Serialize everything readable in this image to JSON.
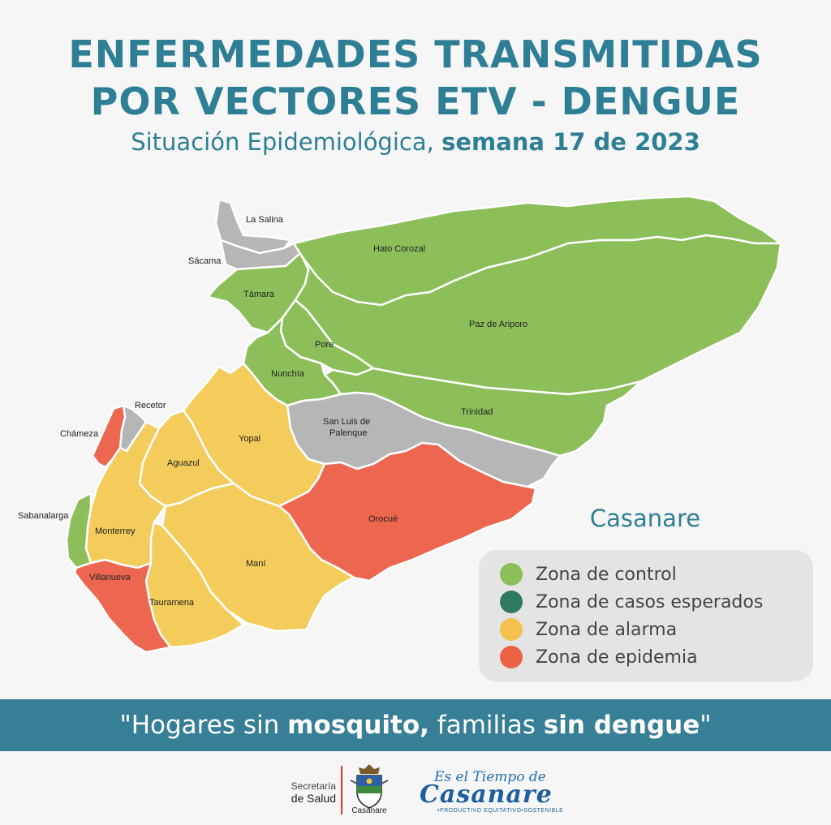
{
  "header": {
    "title_line1": "ENFERMEDADES TRANSMITIDAS",
    "title_line2": "POR VECTORES ETV - DENGUE",
    "subtitle_light": "Situación Epidemiológica,",
    "subtitle_bold": "semana 17 de 2023"
  },
  "map": {
    "region_name": "Casanare",
    "municipalities": [
      {
        "name": "La Salina",
        "zone": "gray"
      },
      {
        "name": "Sácama",
        "zone": "gray"
      },
      {
        "name": "Hato Corozal",
        "zone": "control"
      },
      {
        "name": "Támara",
        "zone": "control"
      },
      {
        "name": "Paz de Ariporo",
        "zone": "control"
      },
      {
        "name": "Pore",
        "zone": "control"
      },
      {
        "name": "Nunchía",
        "zone": "control"
      },
      {
        "name": "Trinidad",
        "zone": "control"
      },
      {
        "name": "Recetor",
        "zone": "gray"
      },
      {
        "name": "Chámeza",
        "zone": "epidemia"
      },
      {
        "name": "San Luis de",
        "zone": "gray"
      },
      {
        "name": "Palenque",
        "zone": "gray"
      },
      {
        "name": "Yopal",
        "zone": "alarma"
      },
      {
        "name": "Aguazul",
        "zone": "alarma"
      },
      {
        "name": "Orocué",
        "zone": "epidemia"
      },
      {
        "name": "Sabanalarga",
        "zone": "control"
      },
      {
        "name": "Monterrey",
        "zone": "alarma"
      },
      {
        "name": "Maní",
        "zone": "alarma"
      },
      {
        "name": "Villanueva",
        "zone": "epidemia"
      },
      {
        "name": "Tauramena",
        "zone": "alarma"
      }
    ]
  },
  "legend": [
    {
      "label": "Zona de control",
      "color": "#8cbf5a"
    },
    {
      "label": "Zona de casos esperados",
      "color": "#2f7a64"
    },
    {
      "label": "Zona de alarma",
      "color": "#f4c04e"
    },
    {
      "label": "Zona de epidemia",
      "color": "#ec6245"
    }
  ],
  "colors": {
    "control": "#8cbf5a",
    "alarma": "#f4cc5c",
    "epidemia": "#ec6650",
    "gray": "#b6b6b6",
    "brand_teal": "#2e7f95"
  },
  "banner": {
    "part1": "\"Hogares sin ",
    "bold1": "mosquito,",
    "part2": " familias ",
    "bold2": "sin dengue",
    "part3": "\""
  },
  "footer": {
    "secretaria_line1": "Secretaría",
    "secretaria_line2": "de Salud",
    "crest_label": "Casanare",
    "brand_top": "Es el Tiempo de",
    "brand_main": "Casanare",
    "brand_sub": "•PRODUCTIVO  EQUITATIVO•SOSTENIBLE"
  }
}
